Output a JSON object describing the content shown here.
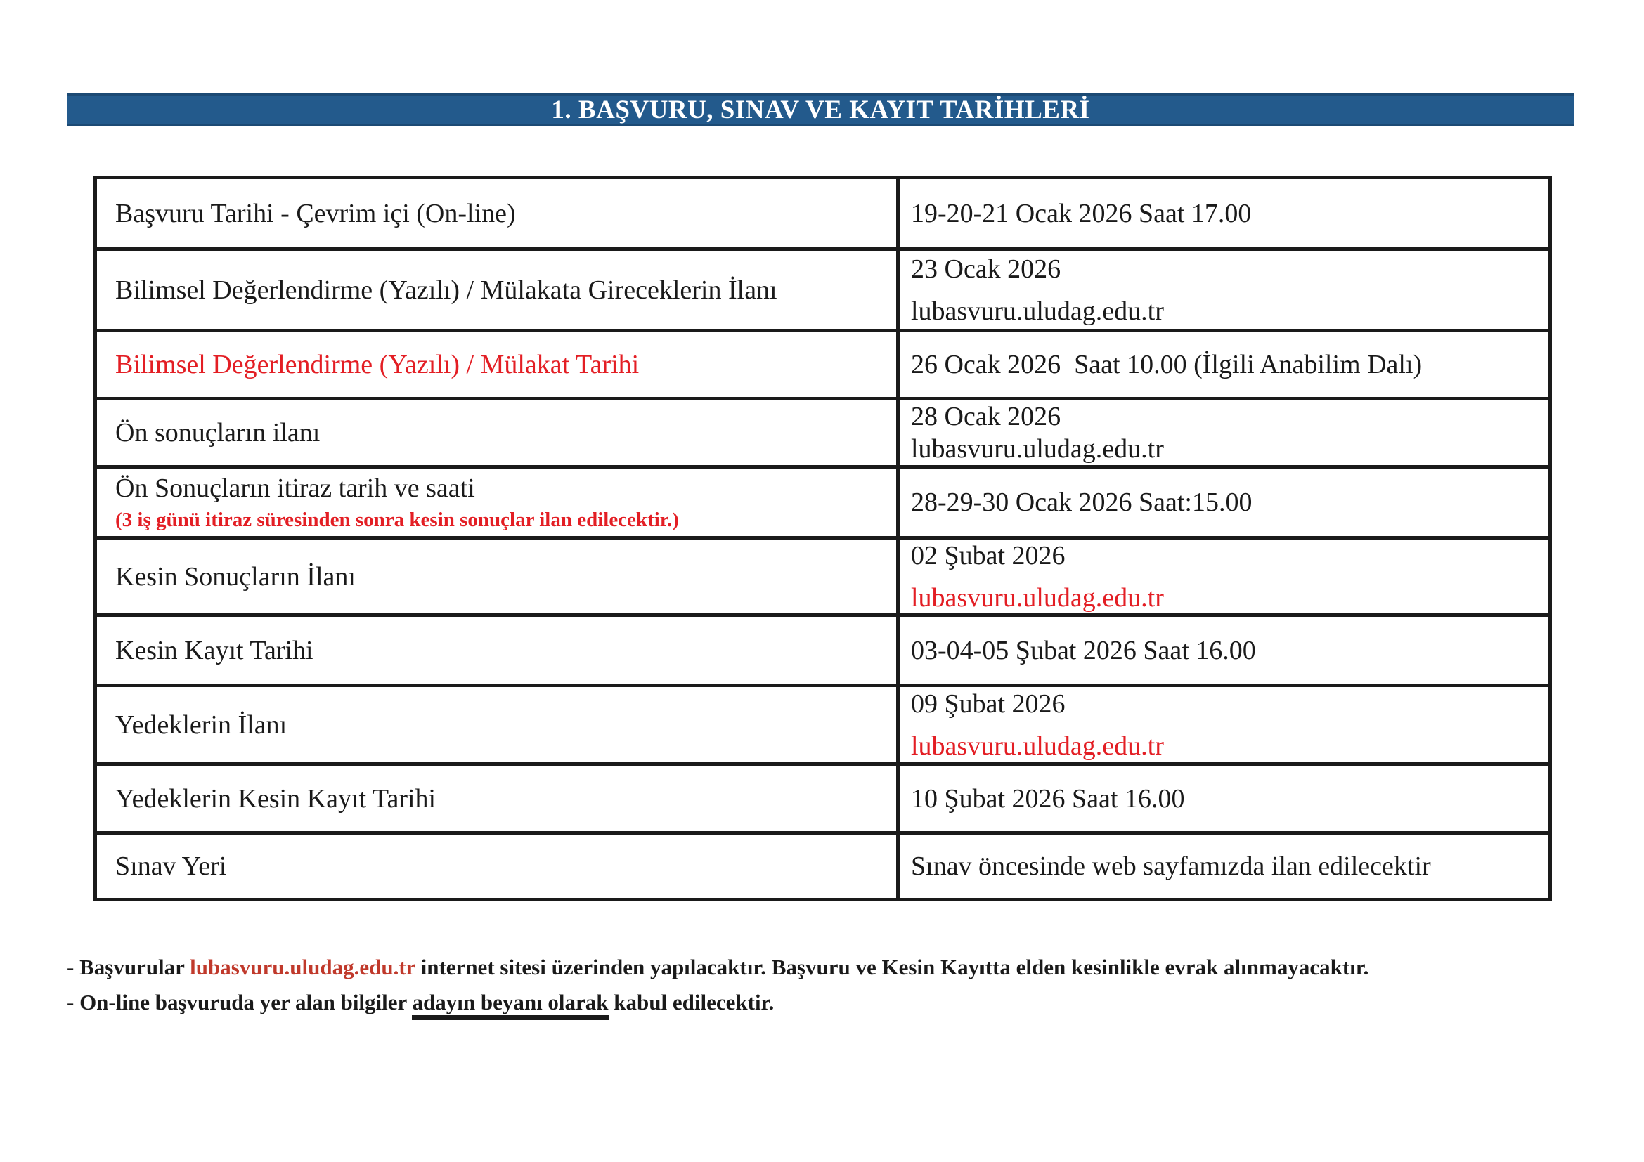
{
  "section_title": "1. BAŞVURU, SINAV VE KAYIT TARİHLERİ",
  "colors": {
    "header_bg": "#235a8c",
    "table_border": "#1a1a1a",
    "accent_red": "#e31e24",
    "footer_link_red": "#c0392b"
  },
  "table": {
    "rows": [
      {
        "label": "Başvuru Tarihi - Çevrim içi (On-line)",
        "value": "19-20-21 Ocak 2026 Saat 17.00"
      },
      {
        "label": "Bilimsel Değerlendirme (Yazılı) / Mülakata Gireceklerin İlanı",
        "value": "23 Ocak 2026",
        "value2": "lubasvuru.uludag.edu.tr"
      },
      {
        "label": "Bilimsel Değerlendirme (Yazılı) / Mülakat Tarihi",
        "value": "26 Ocak 2026  Saat 10.00 (İlgili Anabilim Dalı)"
      },
      {
        "label": "Ön sonuçların ilanı",
        "value": "28 Ocak 2026",
        "value2": "lubasvuru.uludag.edu.tr"
      },
      {
        "label": "Ön Sonuçların itiraz tarih ve saati",
        "label_note": "(3 iş günü itiraz süresinden sonra kesin sonuçlar ilan edilecektir.)",
        "value": "28-29-30 Ocak 2026 Saat:15.00"
      },
      {
        "label": "Kesin Sonuçların İlanı",
        "value": "02 Şubat 2026",
        "value2": "lubasvuru.uludag.edu.tr"
      },
      {
        "label": "Kesin Kayıt Tarihi",
        "value": "03-04-05 Şubat 2026 Saat 16.00"
      },
      {
        "label": "Yedeklerin İlanı",
        "value": "09 Şubat 2026",
        "value2": "lubasvuru.uludag.edu.tr"
      },
      {
        "label": "Yedeklerin Kesin Kayıt Tarihi",
        "value": "10 Şubat 2026 Saat 16.00"
      },
      {
        "label": "Sınav Yeri",
        "value": "Sınav öncesinde web sayfamızda ilan edilecektir"
      }
    ]
  },
  "footer": {
    "note1_prefix": "- Başvurular ",
    "note1_link": "lubasvuru.uludag.edu.tr",
    "note1_suffix": " internet sitesi üzerinden yapılacaktır. Başvuru ve Kesin Kayıtta elden kesinlikle evrak alınmayacaktır.",
    "note2_prefix": "- On-line başvuruda yer alan bilgiler ",
    "note2_underlined": "adayın beyanı olarak",
    "note2_suffix": " kabul edilecektir."
  }
}
